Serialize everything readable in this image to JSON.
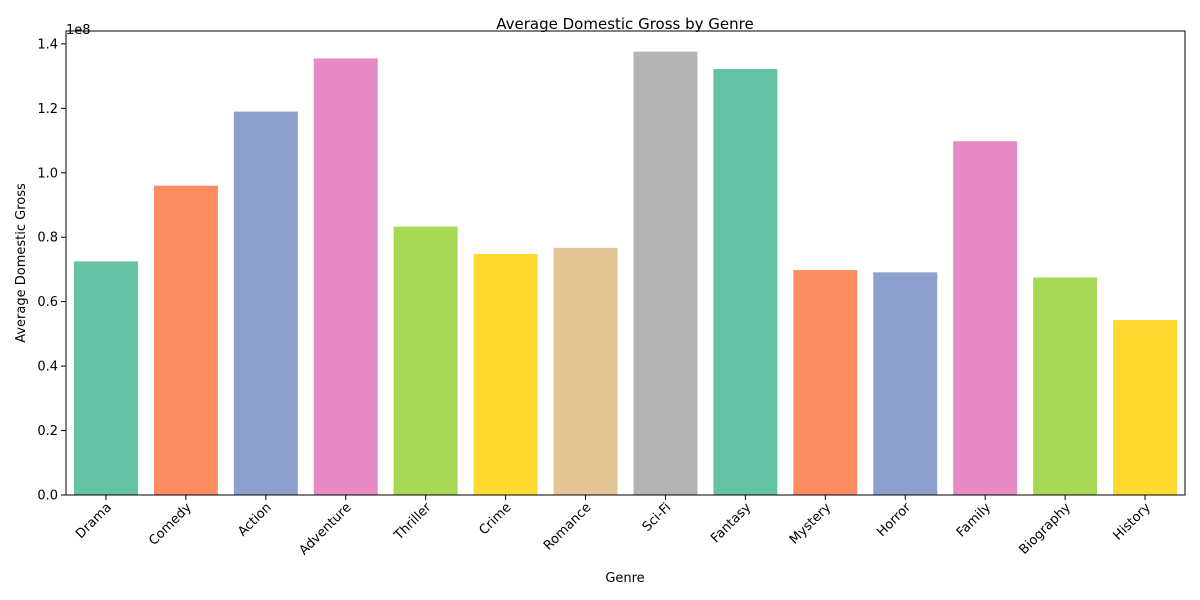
{
  "chart_data": {
    "type": "bar",
    "title": "Average Domestic Gross by Genre",
    "xlabel": "Genre",
    "ylabel": "Average Domestic Gross",
    "offset_label": "1e8",
    "categories": [
      "Drama",
      "Comedy",
      "Action",
      "Adventure",
      "Thriller",
      "Crime",
      "Romance",
      "Sci-Fi",
      "Fantasy",
      "Mystery",
      "Horror",
      "Family",
      "Biography",
      "History"
    ],
    "values": [
      72500000,
      96000000,
      119000000,
      135500000,
      83300000,
      74800000,
      76700000,
      137600000,
      132200000,
      69800000,
      69100000,
      109800000,
      67500000,
      54300000
    ],
    "colors": [
      "#66c2a5",
      "#fc8d62",
      "#8da0cb",
      "#e78ac3",
      "#a6d854",
      "#ffd92f",
      "#e5c494",
      "#b3b3b3",
      "#66c2a5",
      "#fc8d62",
      "#8da0cb",
      "#e78ac3",
      "#a6d854",
      "#ffd92f"
    ],
    "ylim": [
      0,
      144000000
    ],
    "yticks": [
      0,
      20000000,
      40000000,
      60000000,
      80000000,
      100000000,
      120000000,
      140000000
    ],
    "ytick_labels": [
      "0.0",
      "0.2",
      "0.4",
      "0.6",
      "0.8",
      "1.0",
      "1.2",
      "1.4"
    ],
    "grid": false,
    "legend": "none"
  }
}
